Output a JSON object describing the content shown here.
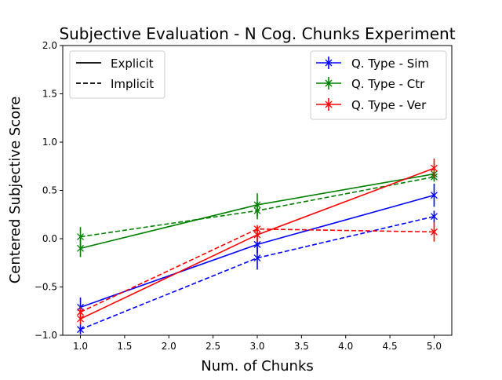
{
  "chart_data": {
    "type": "line",
    "title": "Subjective Evaluation - N Cog. Chunks Experiment",
    "xlabel": "Num. of Chunks",
    "ylabel": "Centered Subjective Score",
    "xlim": [
      0.8,
      5.2
    ],
    "ylim": [
      -1.0,
      2.0
    ],
    "xticks": [
      1.0,
      1.5,
      2.0,
      2.5,
      3.0,
      3.5,
      4.0,
      4.5,
      5.0
    ],
    "xtick_labels": [
      "1.0",
      "1.5",
      "2.0",
      "2.5",
      "3.0",
      "3.5",
      "4.0",
      "4.5",
      "5.0"
    ],
    "yticks": [
      -1.0,
      -0.5,
      0.0,
      0.5,
      1.0,
      1.5,
      2.0
    ],
    "ytick_labels": [
      "−1.0",
      "−0.5",
      "0.0",
      "0.5",
      "1.0",
      "1.5",
      "2.0"
    ],
    "grid": false,
    "style_legend": {
      "position": "top-left",
      "entries": [
        {
          "label": "Explicit",
          "dash": "solid"
        },
        {
          "label": "Implicit",
          "dash": "dashed"
        }
      ]
    },
    "color_legend": {
      "position": "top-right",
      "entries": [
        {
          "label": "Q. Type - Sim",
          "color": "#0000ff"
        },
        {
          "label": "Q. Type - Ctr",
          "color": "#008000"
        },
        {
          "label": "Q. Type - Ver",
          "color": "#ff0000"
        }
      ]
    },
    "series": [
      {
        "name": "Sim Explicit",
        "qtype": "Sim",
        "mode": "Explicit",
        "color": "#0000ff",
        "dash": "solid",
        "x": [
          1,
          3,
          5
        ],
        "y": [
          -0.71,
          -0.06,
          0.45
        ],
        "err": [
          0.1,
          0.09,
          0.12
        ]
      },
      {
        "name": "Sim Implicit",
        "qtype": "Sim",
        "mode": "Implicit",
        "color": "#0000ff",
        "dash": "dashed",
        "x": [
          1,
          3,
          5
        ],
        "y": [
          -0.94,
          -0.2,
          0.23
        ],
        "err": [
          0.05,
          0.12,
          0.06
        ]
      },
      {
        "name": "Ctr Explicit",
        "qtype": "Ctr",
        "mode": "Explicit",
        "color": "#008000",
        "dash": "solid",
        "x": [
          1,
          3,
          5
        ],
        "y": [
          -0.1,
          0.35,
          0.67
        ],
        "err": [
          0.09,
          0.12,
          0.06
        ]
      },
      {
        "name": "Ctr Implicit",
        "qtype": "Ctr",
        "mode": "Implicit",
        "color": "#008000",
        "dash": "dashed",
        "x": [
          1,
          3,
          5
        ],
        "y": [
          0.02,
          0.29,
          0.64
        ],
        "err": [
          0.1,
          0.09,
          0.05
        ]
      },
      {
        "name": "Ver Explicit",
        "qtype": "Ver",
        "mode": "Explicit",
        "color": "#ff0000",
        "dash": "solid",
        "x": [
          1,
          3,
          5
        ],
        "y": [
          -0.83,
          0.04,
          0.73
        ],
        "err": [
          0.06,
          0.07,
          0.1
        ]
      },
      {
        "name": "Ver Implicit",
        "qtype": "Ver",
        "mode": "Implicit",
        "color": "#ff0000",
        "dash": "dashed",
        "x": [
          1,
          3,
          5
        ],
        "y": [
          -0.76,
          0.1,
          0.07
        ],
        "err": [
          0.05,
          0.04,
          0.1
        ]
      }
    ]
  }
}
